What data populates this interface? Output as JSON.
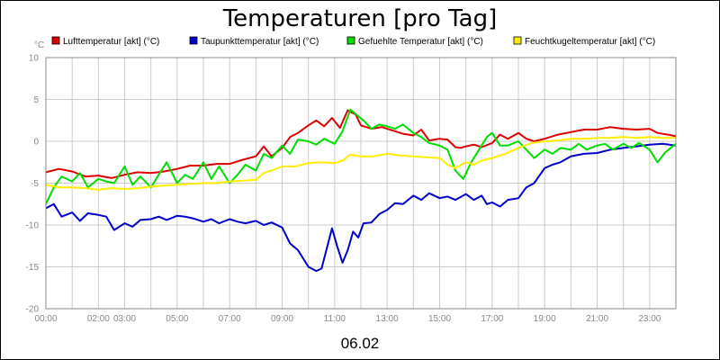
{
  "chart_data": {
    "type": "line",
    "title": "Temperaturen [pro Tag]",
    "ylabel": "°C",
    "date_label": "06.02",
    "ylim": [
      -20,
      10
    ],
    "xlim": [
      0,
      24
    ],
    "y_ticks": [
      10,
      5,
      0,
      -5,
      -10,
      -15,
      -20
    ],
    "x_tick_labels": [
      {
        "x": 0,
        "label": "00:00"
      },
      {
        "x": 2,
        "label": "02:00"
      },
      {
        "x": 3,
        "label": "03:00"
      },
      {
        "x": 5,
        "label": "05:00"
      },
      {
        "x": 7,
        "label": "07:00"
      },
      {
        "x": 9,
        "label": "09:00"
      },
      {
        "x": 11,
        "label": "11:00"
      },
      {
        "x": 13,
        "label": "13:00"
      },
      {
        "x": 15,
        "label": "15:00"
      },
      {
        "x": 17,
        "label": "17:00"
      },
      {
        "x": 19,
        "label": "19:00"
      },
      {
        "x": 21,
        "label": "21:00"
      },
      {
        "x": 23,
        "label": "23:00"
      }
    ],
    "grid": true,
    "legend_position": "top",
    "series": [
      {
        "name": "Lufttemperatur [akt] (°C)",
        "color": "#dd0000",
        "points": [
          [
            0,
            -3.7
          ],
          [
            0.5,
            -3.3
          ],
          [
            1,
            -3.6
          ],
          [
            1.5,
            -4.2
          ],
          [
            2,
            -4.1
          ],
          [
            2.5,
            -4.4
          ],
          [
            3,
            -4.0
          ],
          [
            3.5,
            -3.7
          ],
          [
            4,
            -3.8
          ],
          [
            4.5,
            -3.6
          ],
          [
            5,
            -3.3
          ],
          [
            5.5,
            -2.9
          ],
          [
            6,
            -2.9
          ],
          [
            6.5,
            -2.7
          ],
          [
            7,
            -2.7
          ],
          [
            7.5,
            -2.2
          ],
          [
            8,
            -1.8
          ],
          [
            8.3,
            -0.6
          ],
          [
            8.6,
            -1.8
          ],
          [
            9,
            -0.8
          ],
          [
            9.3,
            0.5
          ],
          [
            9.6,
            1.0
          ],
          [
            10,
            1.9
          ],
          [
            10.3,
            2.5
          ],
          [
            10.6,
            1.8
          ],
          [
            10.9,
            2.8
          ],
          [
            11.2,
            1.6
          ],
          [
            11.5,
            3.7
          ],
          [
            11.8,
            3.2
          ],
          [
            12,
            1.9
          ],
          [
            12.4,
            1.5
          ],
          [
            12.8,
            1.7
          ],
          [
            13.2,
            1.3
          ],
          [
            13.6,
            0.9
          ],
          [
            14,
            0.7
          ],
          [
            14.3,
            1.4
          ],
          [
            14.6,
            0.1
          ],
          [
            15,
            0.3
          ],
          [
            15.3,
            0.2
          ],
          [
            15.6,
            -0.7
          ],
          [
            15.8,
            -0.8
          ],
          [
            16,
            -0.6
          ],
          [
            16.3,
            -0.4
          ],
          [
            16.6,
            -0.7
          ],
          [
            17,
            -0.2
          ],
          [
            17.3,
            0.8
          ],
          [
            17.6,
            0.3
          ],
          [
            18,
            1.0
          ],
          [
            18.3,
            0.3
          ],
          [
            18.6,
            0.0
          ],
          [
            19,
            0.3
          ],
          [
            19.5,
            0.8
          ],
          [
            20,
            1.1
          ],
          [
            20.5,
            1.4
          ],
          [
            21,
            1.4
          ],
          [
            21.5,
            1.7
          ],
          [
            22,
            1.5
          ],
          [
            22.5,
            1.4
          ],
          [
            23,
            1.5
          ],
          [
            23.3,
            1.0
          ],
          [
            23.7,
            0.8
          ],
          [
            24,
            0.6
          ]
        ]
      },
      {
        "name": "Taupunkttemperatur [akt] (°C)",
        "color": "#0000cc",
        "points": [
          [
            0,
            -8.0
          ],
          [
            0.3,
            -7.5
          ],
          [
            0.6,
            -9.0
          ],
          [
            1,
            -8.5
          ],
          [
            1.3,
            -9.5
          ],
          [
            1.6,
            -8.6
          ],
          [
            2,
            -8.8
          ],
          [
            2.3,
            -9.0
          ],
          [
            2.6,
            -10.6
          ],
          [
            3,
            -9.8
          ],
          [
            3.3,
            -10.2
          ],
          [
            3.6,
            -9.4
          ],
          [
            4,
            -9.3
          ],
          [
            4.3,
            -9.0
          ],
          [
            4.6,
            -9.4
          ],
          [
            5,
            -8.9
          ],
          [
            5.3,
            -9.0
          ],
          [
            5.6,
            -9.2
          ],
          [
            6,
            -9.6
          ],
          [
            6.3,
            -9.3
          ],
          [
            6.6,
            -9.8
          ],
          [
            7,
            -9.3
          ],
          [
            7.3,
            -9.6
          ],
          [
            7.6,
            -9.8
          ],
          [
            8,
            -9.5
          ],
          [
            8.3,
            -10.0
          ],
          [
            8.6,
            -9.7
          ],
          [
            9,
            -10.3
          ],
          [
            9.3,
            -12.2
          ],
          [
            9.6,
            -13.0
          ],
          [
            10,
            -15.0
          ],
          [
            10.3,
            -15.5
          ],
          [
            10.5,
            -15.2
          ],
          [
            10.7,
            -12.8
          ],
          [
            10.9,
            -10.4
          ],
          [
            11.1,
            -12.6
          ],
          [
            11.3,
            -14.5
          ],
          [
            11.5,
            -13.0
          ],
          [
            11.7,
            -10.8
          ],
          [
            11.9,
            -11.5
          ],
          [
            12.1,
            -9.8
          ],
          [
            12.4,
            -9.7
          ],
          [
            12.7,
            -8.7
          ],
          [
            13,
            -8.2
          ],
          [
            13.3,
            -7.4
          ],
          [
            13.6,
            -7.5
          ],
          [
            14,
            -6.5
          ],
          [
            14.3,
            -7.0
          ],
          [
            14.6,
            -6.2
          ],
          [
            15,
            -6.8
          ],
          [
            15.3,
            -6.6
          ],
          [
            15.6,
            -7.0
          ],
          [
            16,
            -6.3
          ],
          [
            16.3,
            -7.0
          ],
          [
            16.6,
            -6.5
          ],
          [
            16.8,
            -7.5
          ],
          [
            17,
            -7.3
          ],
          [
            17.3,
            -7.8
          ],
          [
            17.6,
            -7.0
          ],
          [
            18,
            -6.8
          ],
          [
            18.3,
            -5.5
          ],
          [
            18.6,
            -5.0
          ],
          [
            19,
            -3.2
          ],
          [
            19.3,
            -2.8
          ],
          [
            19.6,
            -2.5
          ],
          [
            20,
            -1.8
          ],
          [
            20.5,
            -1.5
          ],
          [
            21,
            -1.4
          ],
          [
            21.5,
            -1.0
          ],
          [
            22,
            -0.8
          ],
          [
            22.5,
            -0.6
          ],
          [
            23,
            -0.4
          ],
          [
            23.5,
            -0.3
          ],
          [
            24,
            -0.5
          ]
        ]
      },
      {
        "name": "Gefuehlte Temperatur [akt] (°C)",
        "color": "#00dd00",
        "points": [
          [
            0,
            -7.5
          ],
          [
            0.3,
            -5.5
          ],
          [
            0.6,
            -4.2
          ],
          [
            1,
            -4.8
          ],
          [
            1.3,
            -3.8
          ],
          [
            1.6,
            -5.5
          ],
          [
            2,
            -4.5
          ],
          [
            2.3,
            -4.8
          ],
          [
            2.6,
            -5.0
          ],
          [
            3,
            -3.0
          ],
          [
            3.3,
            -5.2
          ],
          [
            3.6,
            -4.2
          ],
          [
            4,
            -5.5
          ],
          [
            4.3,
            -4.0
          ],
          [
            4.6,
            -2.5
          ],
          [
            5,
            -5.0
          ],
          [
            5.3,
            -4.0
          ],
          [
            5.6,
            -4.5
          ],
          [
            6,
            -2.5
          ],
          [
            6.3,
            -4.5
          ],
          [
            6.6,
            -3.0
          ],
          [
            7,
            -5.0
          ],
          [
            7.3,
            -4.0
          ],
          [
            7.6,
            -2.8
          ],
          [
            8,
            -3.5
          ],
          [
            8.3,
            -1.5
          ],
          [
            8.6,
            -2.0
          ],
          [
            9,
            -0.5
          ],
          [
            9.3,
            -1.5
          ],
          [
            9.6,
            0.2
          ],
          [
            10,
            0.0
          ],
          [
            10.3,
            -0.4
          ],
          [
            10.6,
            0.3
          ],
          [
            11,
            -0.3
          ],
          [
            11.3,
            1.2
          ],
          [
            11.6,
            3.8
          ],
          [
            11.9,
            3.0
          ],
          [
            12.1,
            2.5
          ],
          [
            12.4,
            1.5
          ],
          [
            12.7,
            2.0
          ],
          [
            13,
            1.8
          ],
          [
            13.3,
            1.5
          ],
          [
            13.6,
            2.0
          ],
          [
            14,
            1.0
          ],
          [
            14.3,
            0.5
          ],
          [
            14.6,
            -0.2
          ],
          [
            15,
            -0.5
          ],
          [
            15.3,
            -1.0
          ],
          [
            15.6,
            -3.5
          ],
          [
            15.9,
            -4.5
          ],
          [
            16.2,
            -2.5
          ],
          [
            16.5,
            -1.0
          ],
          [
            16.8,
            0.5
          ],
          [
            17,
            1.0
          ],
          [
            17.3,
            -0.5
          ],
          [
            17.6,
            -0.5
          ],
          [
            18,
            0.0
          ],
          [
            18.3,
            -1.0
          ],
          [
            18.6,
            -2.0
          ],
          [
            19,
            -1.0
          ],
          [
            19.3,
            -1.5
          ],
          [
            19.6,
            -0.8
          ],
          [
            20,
            -1.0
          ],
          [
            20.3,
            -0.3
          ],
          [
            20.6,
            -1.0
          ],
          [
            21,
            -0.5
          ],
          [
            21.3,
            -0.3
          ],
          [
            21.6,
            -1.0
          ],
          [
            22,
            -0.3
          ],
          [
            22.3,
            -0.8
          ],
          [
            22.6,
            -0.2
          ],
          [
            23,
            -1.0
          ],
          [
            23.3,
            -2.5
          ],
          [
            23.6,
            -1.3
          ],
          [
            24,
            -0.3
          ]
        ]
      },
      {
        "name": "Feuchtkugeltemperatur [akt] (°C)",
        "color": "#ffee00",
        "points": [
          [
            0,
            -5.2
          ],
          [
            0.5,
            -5.5
          ],
          [
            1,
            -5.5
          ],
          [
            1.5,
            -5.6
          ],
          [
            2,
            -5.8
          ],
          [
            2.5,
            -5.6
          ],
          [
            3,
            -5.7
          ],
          [
            3.5,
            -5.6
          ],
          [
            4,
            -5.4
          ],
          [
            4.5,
            -5.3
          ],
          [
            5,
            -5.2
          ],
          [
            5.5,
            -5.1
          ],
          [
            6,
            -5.0
          ],
          [
            6.5,
            -5.0
          ],
          [
            7,
            -4.8
          ],
          [
            7.5,
            -4.7
          ],
          [
            8,
            -4.6
          ],
          [
            8.3,
            -3.8
          ],
          [
            8.6,
            -3.5
          ],
          [
            9,
            -3.0
          ],
          [
            9.5,
            -3.0
          ],
          [
            10,
            -2.6
          ],
          [
            10.5,
            -2.5
          ],
          [
            11,
            -2.6
          ],
          [
            11.3,
            -2.3
          ],
          [
            11.6,
            -1.6
          ],
          [
            12,
            -1.8
          ],
          [
            12.5,
            -1.8
          ],
          [
            13,
            -1.5
          ],
          [
            13.5,
            -1.7
          ],
          [
            14,
            -1.8
          ],
          [
            14.5,
            -1.9
          ],
          [
            15,
            -2.0
          ],
          [
            15.3,
            -2.8
          ],
          [
            15.6,
            -3.2
          ],
          [
            16,
            -2.5
          ],
          [
            16.3,
            -2.8
          ],
          [
            16.6,
            -2.3
          ],
          [
            17,
            -2.0
          ],
          [
            17.5,
            -1.5
          ],
          [
            18,
            -0.8
          ],
          [
            18.5,
            -0.2
          ],
          [
            19,
            0.0
          ],
          [
            19.5,
            0.1
          ],
          [
            20,
            0.3
          ],
          [
            20.5,
            0.3
          ],
          [
            21,
            0.4
          ],
          [
            21.5,
            0.4
          ],
          [
            22,
            0.5
          ],
          [
            22.5,
            0.4
          ],
          [
            23,
            0.5
          ],
          [
            23.5,
            0.4
          ],
          [
            24,
            0.4
          ]
        ]
      }
    ]
  }
}
